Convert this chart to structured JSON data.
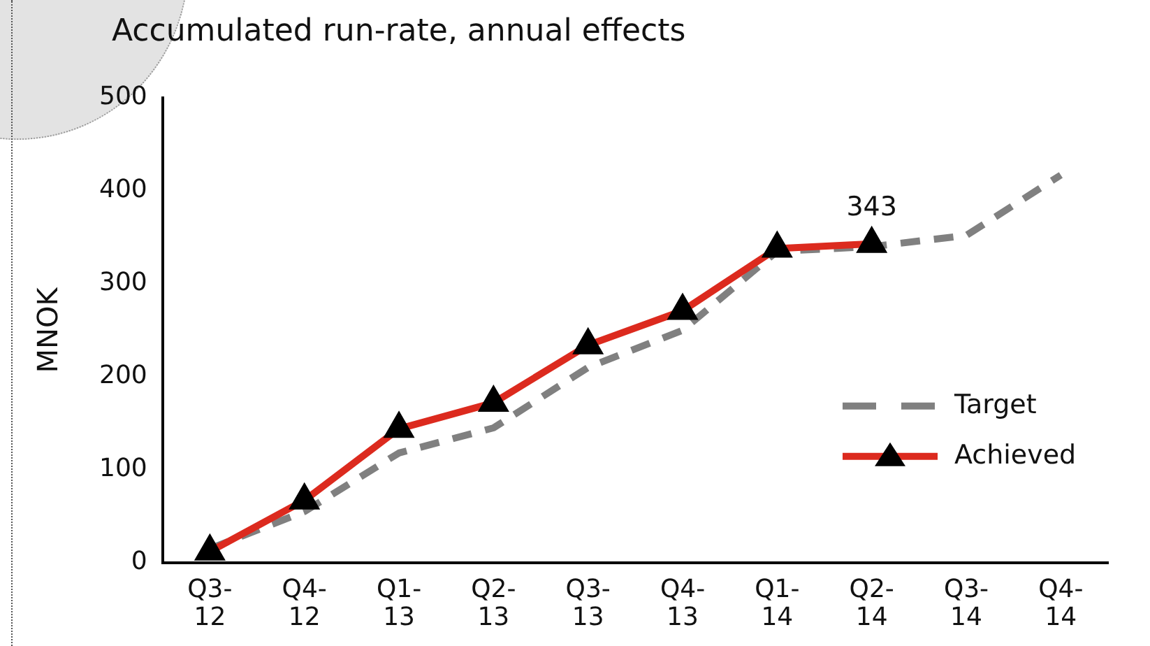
{
  "chart_data": {
    "type": "line",
    "title": "Accumulated run-rate, annual effects",
    "ylabel": "MNOK",
    "categories": [
      "Q3-12",
      "Q4-12",
      "Q1-13",
      "Q2-13",
      "Q3-13",
      "Q4-13",
      "Q1-14",
      "Q2-14",
      "Q3-14",
      "Q4-14"
    ],
    "series": [
      {
        "name": "Target",
        "color": "#808080",
        "line_style": "dashed",
        "marker": "none",
        "values": [
          15,
          55,
          118,
          145,
          210,
          250,
          335,
          340,
          352,
          417
        ]
      },
      {
        "name": "Achieved",
        "color": "#dc2a1e",
        "line_style": "solid",
        "marker": "triangle",
        "values": [
          12,
          67,
          144,
          172,
          234,
          271,
          338,
          343,
          null,
          null
        ],
        "value_labels": [
          null,
          null,
          null,
          null,
          null,
          null,
          null,
          "343",
          null,
          null
        ]
      }
    ],
    "ylim": [
      0,
      500
    ],
    "yticks": [
      0,
      100,
      200,
      300,
      400,
      500
    ],
    "grid": false,
    "legend": "bottom right"
  }
}
